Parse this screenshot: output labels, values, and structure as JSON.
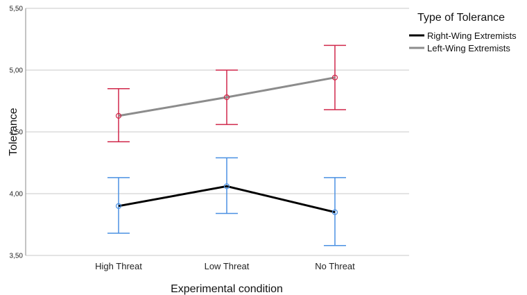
{
  "chart_data": {
    "type": "line",
    "xlabel": "Experimental condition",
    "ylabel": "Tolerance",
    "categories": [
      "High Threat",
      "Low Threat",
      "No Threat"
    ],
    "ylim": [
      3.5,
      5.5
    ],
    "yticks": [
      "3,50",
      "4,00",
      "4,50",
      "5,00",
      "5,50"
    ],
    "ytick_values": [
      3.5,
      4.0,
      4.5,
      5.0,
      5.5
    ],
    "grid": "horizontal",
    "legend": {
      "title": "Type of Tolerance",
      "position": "top-right"
    },
    "series": [
      {
        "name": "Right-Wing Extremists",
        "line_color": "#000000",
        "error_color": "#4a90e2",
        "values": [
          3.9,
          4.06,
          3.85
        ],
        "error_low": [
          3.68,
          3.84,
          3.58
        ],
        "error_high": [
          4.13,
          4.29,
          4.13
        ]
      },
      {
        "name": "Left-Wing Extremists",
        "line_color": "#8c8c8c",
        "error_color": "#d0274a",
        "values": [
          4.63,
          4.78,
          4.94
        ],
        "error_low": [
          4.42,
          4.56,
          4.68
        ],
        "error_high": [
          4.85,
          5.0,
          5.2
        ]
      }
    ]
  }
}
